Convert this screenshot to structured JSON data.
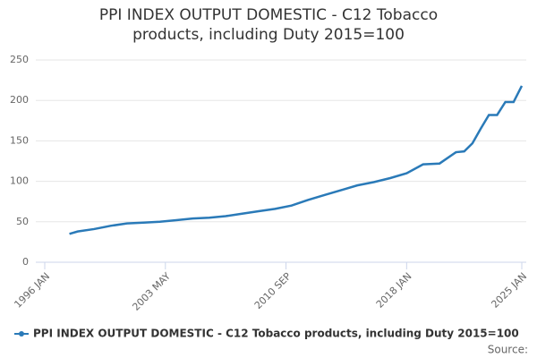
{
  "chart_data": {
    "type": "line",
    "title": "PPI INDEX OUTPUT DOMESTIC - C12 Tobacco products, including Duty 2015=100",
    "x": [
      "1997 JUL",
      "1998 JAN",
      "1999 JAN",
      "2000 JAN",
      "2001 JAN",
      "2002 JAN",
      "2003 JAN",
      "2004 JAN",
      "2005 JAN",
      "2006 JAN",
      "2007 JAN",
      "2008 JAN",
      "2009 JAN",
      "2010 JAN",
      "2011 JAN",
      "2012 JAN",
      "2013 JAN",
      "2014 JAN",
      "2015 JAN",
      "2016 JAN",
      "2017 JAN",
      "2018 JAN",
      "2019 JAN",
      "2020 JAN",
      "2021 JAN",
      "2021 JUL",
      "2022 JAN",
      "2022 JUL",
      "2023 JAN",
      "2023 JUL",
      "2024 JAN",
      "2024 JUL",
      "2025 JAN"
    ],
    "series": [
      {
        "name": "PPI INDEX OUTPUT DOMESTIC - C12 Tobacco products, including Duty 2015=100",
        "color": "#2a7ab8",
        "values": [
          35,
          38,
          41,
          45,
          48,
          49,
          50,
          52,
          54,
          55,
          57,
          60,
          63,
          66,
          70,
          77,
          83,
          89,
          95,
          99,
          104,
          110,
          121,
          122,
          136,
          137,
          147,
          165,
          182,
          182,
          198,
          198,
          218
        ]
      }
    ],
    "xlim": [
      "1996 JAN",
      "2025 JAN"
    ],
    "xticks": [
      "1996 JAN",
      "2003 MAY",
      "2010 SEP",
      "2018 JAN",
      "2025 JAN"
    ],
    "ylim": [
      0,
      250
    ],
    "yticks": [
      0,
      50,
      100,
      150,
      200,
      250
    ],
    "grid": true,
    "legend": "bottom",
    "source": "Source:"
  }
}
